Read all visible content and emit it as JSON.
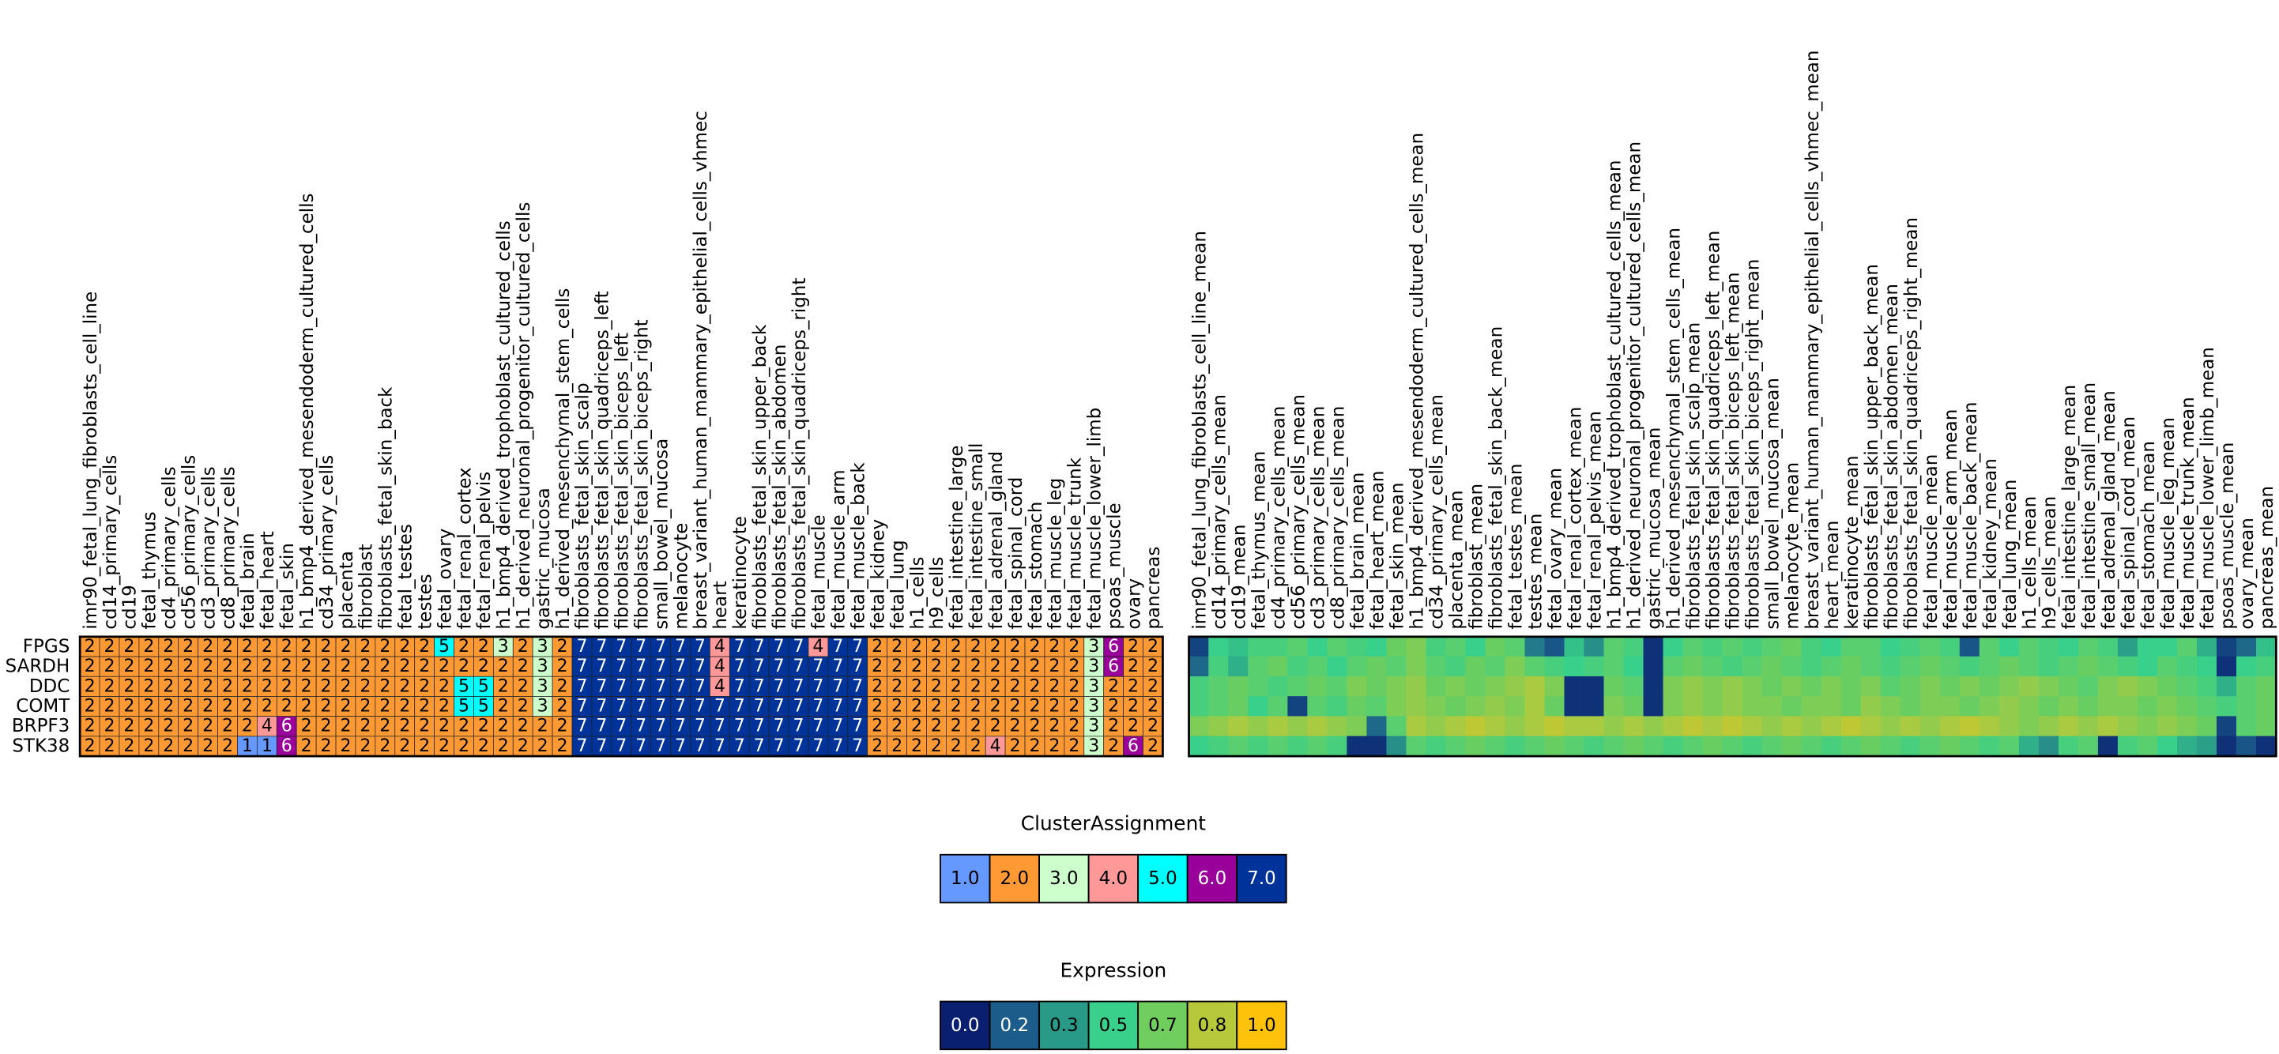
{
  "chart_data": [
    {
      "type": "heatmap",
      "x": [
        "imr90_fetal_lung_fibroblasts_cell_line",
        "cd14_primary_cells",
        "cd19",
        "fetal_thymus",
        "cd4_primary_cells",
        "cd56_primary_cells",
        "cd3_primary_cells",
        "cd8_primary_cells",
        "fetal_brain",
        "fetal_heart",
        "fetal_skin",
        "h1_bmp4_derived_mesendoderm_cultured_cells",
        "cd34_primary_cells",
        "placenta",
        "fibroblast",
        "fibroblasts_fetal_skin_back",
        "fetal_testes",
        "testes",
        "fetal_ovary",
        "fetal_renal_cortex",
        "fetal_renal_pelvis",
        "h1_bmp4_derived_trophoblast_cultured_cells",
        "h1_derived_neuronal_progenitor_cultured_cells",
        "gastric_mucosa",
        "h1_derived_mesenchymal_stem_cells",
        "fibroblasts_fetal_skin_scalp",
        "fibroblasts_fetal_skin_quadriceps_left",
        "fibroblasts_fetal_skin_biceps_left",
        "fibroblasts_fetal_skin_biceps_right",
        "small_bowel_mucosa",
        "melanocyte",
        "breast_variant_human_mammary_epithelial_cells_vhmec",
        "heart",
        "keratinocyte",
        "fibroblasts_fetal_skin_upper_back",
        "fibroblasts_fetal_skin_abdomen",
        "fibroblasts_fetal_skin_quadriceps_right",
        "fetal_muscle",
        "fetal_muscle_arm",
        "fetal_muscle_back",
        "fetal_kidney",
        "fetal_lung",
        "h1_cells",
        "h9_cells",
        "fetal_intestine_large",
        "fetal_intestine_small",
        "fetal_adrenal_gland",
        "fetal_spinal_cord",
        "fetal_stomach",
        "fetal_muscle_leg",
        "fetal_muscle_trunk",
        "fetal_muscle_lower_limb",
        "psoas_muscle",
        "ovary",
        "pancreas"
      ],
      "y": [
        "FPGS",
        "SARDH",
        "DDC",
        "COMT",
        "BRPF3",
        "STK38"
      ],
      "values": [
        [
          2,
          2,
          2,
          2,
          2,
          2,
          2,
          2,
          2,
          2,
          2,
          2,
          2,
          2,
          2,
          2,
          2,
          2,
          5,
          2,
          2,
          3,
          2,
          3,
          2,
          7,
          7,
          7,
          7,
          7,
          7,
          7,
          4,
          7,
          7,
          7,
          7,
          4,
          7,
          7,
          2,
          2,
          2,
          2,
          2,
          2,
          2,
          2,
          2,
          2,
          2,
          3,
          6,
          2,
          2
        ],
        [
          2,
          2,
          2,
          2,
          2,
          2,
          2,
          2,
          2,
          2,
          2,
          2,
          2,
          2,
          2,
          2,
          2,
          2,
          2,
          2,
          2,
          2,
          2,
          3,
          2,
          7,
          7,
          7,
          7,
          7,
          7,
          7,
          4,
          7,
          7,
          7,
          7,
          7,
          7,
          7,
          2,
          2,
          2,
          2,
          2,
          2,
          2,
          2,
          2,
          2,
          2,
          3,
          6,
          2,
          2
        ],
        [
          2,
          2,
          2,
          2,
          2,
          2,
          2,
          2,
          2,
          2,
          2,
          2,
          2,
          2,
          2,
          2,
          2,
          2,
          2,
          5,
          5,
          2,
          2,
          3,
          2,
          7,
          7,
          7,
          7,
          7,
          7,
          7,
          4,
          7,
          7,
          7,
          7,
          7,
          7,
          7,
          2,
          2,
          2,
          2,
          2,
          2,
          2,
          2,
          2,
          2,
          2,
          3,
          2,
          2,
          2
        ],
        [
          2,
          2,
          2,
          2,
          2,
          2,
          2,
          2,
          2,
          2,
          2,
          2,
          2,
          2,
          2,
          2,
          2,
          2,
          2,
          5,
          5,
          2,
          2,
          3,
          2,
          7,
          7,
          7,
          7,
          7,
          7,
          7,
          7,
          7,
          7,
          7,
          7,
          7,
          7,
          7,
          2,
          2,
          2,
          2,
          2,
          2,
          2,
          2,
          2,
          2,
          2,
          3,
          2,
          2,
          2
        ],
        [
          2,
          2,
          2,
          2,
          2,
          2,
          2,
          2,
          2,
          4,
          6,
          2,
          2,
          2,
          2,
          2,
          2,
          2,
          2,
          2,
          2,
          2,
          2,
          2,
          2,
          7,
          7,
          7,
          7,
          7,
          7,
          7,
          7,
          7,
          7,
          7,
          7,
          7,
          7,
          7,
          2,
          2,
          2,
          2,
          2,
          2,
          2,
          2,
          2,
          2,
          2,
          3,
          2,
          2,
          2
        ],
        [
          2,
          2,
          2,
          2,
          2,
          2,
          2,
          2,
          1,
          1,
          6,
          2,
          2,
          2,
          2,
          2,
          2,
          2,
          2,
          2,
          2,
          2,
          2,
          2,
          2,
          7,
          7,
          7,
          7,
          7,
          7,
          7,
          7,
          7,
          7,
          7,
          7,
          7,
          7,
          7,
          2,
          2,
          2,
          2,
          2,
          2,
          4,
          2,
          2,
          2,
          2,
          3,
          2,
          6,
          2
        ]
      ],
      "colorbar": {
        "title": "ClusterAssignment",
        "ticks": [
          {
            "value": 1,
            "label": "1.0",
            "color": "#6699ff"
          },
          {
            "value": 2,
            "label": "2.0",
            "color": "#ff9933"
          },
          {
            "value": 3,
            "label": "3.0",
            "color": "#ccffcc"
          },
          {
            "value": 4,
            "label": "4.0",
            "color": "#ff9999"
          },
          {
            "value": 5,
            "label": "5.0",
            "color": "#00ffff"
          },
          {
            "value": 6,
            "label": "6.0",
            "color": "#990099"
          },
          {
            "value": 7,
            "label": "7.0",
            "color": "#003399"
          }
        ]
      }
    },
    {
      "type": "heatmap",
      "x": [
        "imr90_fetal_lung_fibroblasts_cell_line_mean",
        "cd14_primary_cells_mean",
        "cd19_mean",
        "fetal_thymus_mean",
        "cd4_primary_cells_mean",
        "cd56_primary_cells_mean",
        "cd3_primary_cells_mean",
        "cd8_primary_cells_mean",
        "fetal_brain_mean",
        "fetal_heart_mean",
        "fetal_skin_mean",
        "h1_bmp4_derived_mesendoderm_cultured_cells_mean",
        "cd34_primary_cells_mean",
        "placenta_mean",
        "fibroblast_mean",
        "fibroblasts_fetal_skin_back_mean",
        "fetal_testes_mean",
        "testes_mean",
        "fetal_ovary_mean",
        "fetal_renal_cortex_mean",
        "fetal_renal_pelvis_mean",
        "h1_bmp4_derived_trophoblast_cultured_cells_mean",
        "h1_derived_neuronal_progenitor_cultured_cells_mean",
        "gastric_mucosa_mean",
        "h1_derived_mesenchymal_stem_cells_mean",
        "fibroblasts_fetal_skin_scalp_mean",
        "fibroblasts_fetal_skin_quadriceps_left_mean",
        "fibroblasts_fetal_skin_biceps_left_mean",
        "fibroblasts_fetal_skin_biceps_right_mean",
        "small_bowel_mucosa_mean",
        "melanocyte_mean",
        "breast_variant_human_mammary_epithelial_cells_vhmec_mean",
        "heart_mean",
        "keratinocyte_mean",
        "fibroblasts_fetal_skin_upper_back_mean",
        "fibroblasts_fetal_skin_abdomen_mean",
        "fibroblasts_fetal_skin_quadriceps_right_mean",
        "fetal_muscle_mean",
        "fetal_muscle_arm_mean",
        "fetal_muscle_back_mean",
        "fetal_kidney_mean",
        "fetal_lung_mean",
        "h1_cells_mean",
        "h9_cells_mean",
        "fetal_intestine_large_mean",
        "fetal_intestine_small_mean",
        "fetal_adrenal_gland_mean",
        "fetal_spinal_cord_mean",
        "fetal_stomach_mean",
        "fetal_muscle_leg_mean",
        "fetal_muscle_trunk_mean",
        "fetal_muscle_lower_limb_mean",
        "psoas_muscle_mean",
        "ovary_mean",
        "pancreas_mean"
      ],
      "values": [
        [
          0.1,
          0.5,
          0.45,
          0.55,
          0.55,
          0.6,
          0.5,
          0.6,
          0.55,
          0.5,
          0.65,
          0.7,
          0.55,
          0.6,
          0.5,
          0.65,
          0.6,
          0.25,
          0.15,
          0.45,
          0.3,
          0.6,
          0.55,
          0.05,
          0.5,
          0.6,
          0.55,
          0.6,
          0.55,
          0.6,
          0.65,
          0.55,
          0.5,
          0.6,
          0.6,
          0.5,
          0.55,
          0.6,
          0.55,
          0.15,
          0.6,
          0.5,
          0.6,
          0.55,
          0.5,
          0.6,
          0.55,
          0.35,
          0.5,
          0.5,
          0.6,
          0.4,
          0.1,
          0.2,
          0.45
        ],
        [
          0.2,
          0.55,
          0.4,
          0.6,
          0.65,
          0.55,
          0.6,
          0.5,
          0.6,
          0.65,
          0.6,
          0.7,
          0.6,
          0.55,
          0.65,
          0.6,
          0.7,
          0.6,
          0.55,
          0.5,
          0.55,
          0.6,
          0.5,
          0.05,
          0.6,
          0.65,
          0.6,
          0.55,
          0.6,
          0.65,
          0.6,
          0.55,
          0.6,
          0.65,
          0.6,
          0.55,
          0.6,
          0.65,
          0.6,
          0.55,
          0.6,
          0.65,
          0.6,
          0.55,
          0.6,
          0.65,
          0.6,
          0.55,
          0.5,
          0.6,
          0.55,
          0.5,
          0.05,
          0.5,
          0.55
        ],
        [
          0.55,
          0.6,
          0.65,
          0.6,
          0.55,
          0.6,
          0.65,
          0.6,
          0.7,
          0.65,
          0.7,
          0.75,
          0.65,
          0.7,
          0.65,
          0.7,
          0.75,
          0.8,
          0.7,
          0.05,
          0.05,
          0.65,
          0.6,
          0.05,
          0.7,
          0.75,
          0.7,
          0.75,
          0.7,
          0.65,
          0.7,
          0.65,
          0.7,
          0.65,
          0.7,
          0.6,
          0.65,
          0.7,
          0.65,
          0.7,
          0.65,
          0.7,
          0.75,
          0.7,
          0.65,
          0.6,
          0.7,
          0.75,
          0.7,
          0.65,
          0.6,
          0.55,
          0.4,
          0.6,
          0.65
        ],
        [
          0.55,
          0.6,
          0.65,
          0.5,
          0.6,
          0.1,
          0.6,
          0.55,
          0.65,
          0.6,
          0.7,
          0.75,
          0.7,
          0.65,
          0.7,
          0.75,
          0.7,
          0.8,
          0.65,
          0.05,
          0.05,
          0.7,
          0.65,
          0.05,
          0.7,
          0.75,
          0.7,
          0.75,
          0.7,
          0.7,
          0.65,
          0.7,
          0.7,
          0.65,
          0.75,
          0.7,
          0.65,
          0.7,
          0.7,
          0.65,
          0.7,
          0.75,
          0.7,
          0.65,
          0.7,
          0.65,
          0.7,
          0.7,
          0.65,
          0.7,
          0.65,
          0.6,
          0.55,
          0.6,
          0.65
        ],
        [
          0.7,
          0.75,
          0.8,
          0.75,
          0.8,
          0.75,
          0.8,
          0.75,
          0.7,
          0.2,
          0.6,
          0.8,
          0.75,
          0.8,
          0.85,
          0.8,
          0.75,
          0.8,
          0.85,
          0.8,
          0.8,
          0.75,
          0.8,
          0.75,
          0.8,
          0.85,
          0.8,
          0.85,
          0.8,
          0.75,
          0.8,
          0.75,
          0.8,
          0.85,
          0.8,
          0.75,
          0.8,
          0.75,
          0.8,
          0.85,
          0.8,
          0.75,
          0.7,
          0.75,
          0.8,
          0.75,
          0.8,
          0.75,
          0.7,
          0.75,
          0.7,
          0.65,
          0.1,
          0.6,
          0.65
        ],
        [
          0.5,
          0.55,
          0.6,
          0.55,
          0.6,
          0.55,
          0.6,
          0.55,
          0.05,
          0.05,
          0.3,
          0.6,
          0.55,
          0.6,
          0.65,
          0.6,
          0.55,
          0.6,
          0.65,
          0.6,
          0.55,
          0.6,
          0.65,
          0.6,
          0.55,
          0.6,
          0.65,
          0.6,
          0.55,
          0.6,
          0.65,
          0.6,
          0.55,
          0.6,
          0.65,
          0.6,
          0.55,
          0.6,
          0.65,
          0.6,
          0.55,
          0.6,
          0.4,
          0.3,
          0.55,
          0.6,
          0.05,
          0.55,
          0.6,
          0.5,
          0.4,
          0.35,
          0.05,
          0.15,
          0.05
        ]
      ],
      "colorbar": {
        "title": "Expression",
        "ticks": [
          {
            "value": 0,
            "label": "0.0",
            "color": "#0a1f70"
          },
          {
            "value": 0.167,
            "label": "0.2",
            "color": "#1b5c8a"
          },
          {
            "value": 0.333,
            "label": "0.3",
            "color": "#2a9a88"
          },
          {
            "value": 0.5,
            "label": "0.5",
            "color": "#38d08a"
          },
          {
            "value": 0.667,
            "label": "0.7",
            "color": "#6fce5e"
          },
          {
            "value": 0.833,
            "label": "0.8",
            "color": "#b7c93a"
          },
          {
            "value": 1,
            "label": "1.0",
            "color": "#ffc20a"
          }
        ]
      }
    }
  ]
}
